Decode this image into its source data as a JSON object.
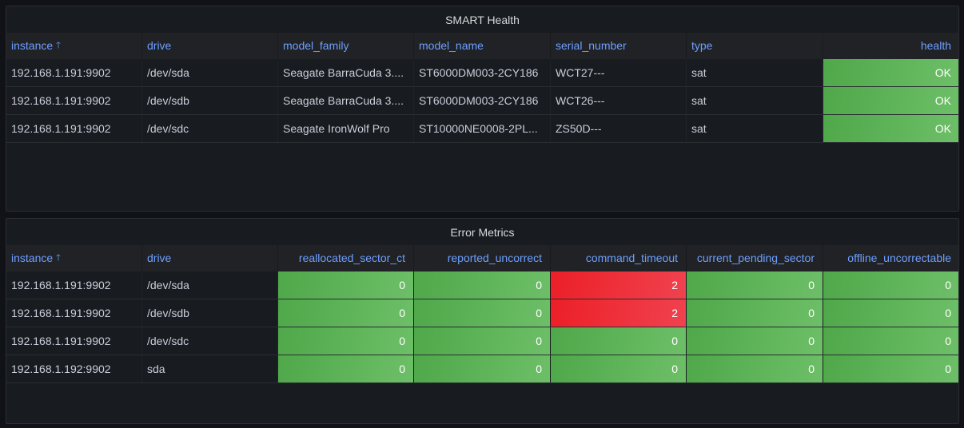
{
  "health_panel": {
    "title": "SMART Health",
    "columns": [
      "instance",
      "drive",
      "model_family",
      "model_name",
      "serial_number",
      "type",
      "health"
    ],
    "rows": [
      [
        "192.168.1.191:9902",
        "/dev/sda",
        "Seagate BarraCuda 3....",
        "ST6000DM003-2CY186",
        "WCT27---",
        "sat",
        "OK"
      ],
      [
        "192.168.1.191:9902",
        "/dev/sdb",
        "Seagate BarraCuda 3....",
        "ST6000DM003-2CY186",
        "WCT26---",
        "sat",
        "OK"
      ],
      [
        "192.168.1.191:9902",
        "/dev/sdc",
        "Seagate IronWolf Pro",
        "ST10000NE0008-2PL...",
        "ZS50D---",
        "sat",
        "OK"
      ]
    ]
  },
  "errors_panel": {
    "title": "Error Metrics",
    "columns": [
      "instance",
      "drive",
      "reallocated_sector_ct",
      "reported_uncorrect",
      "command_timeout",
      "current_pending_sector",
      "offline_uncorrectable"
    ],
    "rows": [
      [
        "192.168.1.191:9902",
        "/dev/sda",
        "0",
        "0",
        "2",
        "0",
        "0"
      ],
      [
        "192.168.1.191:9902",
        "/dev/sdb",
        "0",
        "0",
        "2",
        "0",
        "0"
      ],
      [
        "192.168.1.191:9902",
        "/dev/sdc",
        "0",
        "0",
        "0",
        "0",
        "0"
      ],
      [
        "192.168.1.192:9902",
        "sda",
        "0",
        "0",
        "0",
        "0",
        "0"
      ]
    ]
  },
  "colors": {
    "ok": "#56a64b",
    "bad": "#e02f44",
    "header_text": "#6e9fff",
    "panel_bg": "#181b1f"
  },
  "icons": {
    "sort": "arrow-up-icon"
  }
}
